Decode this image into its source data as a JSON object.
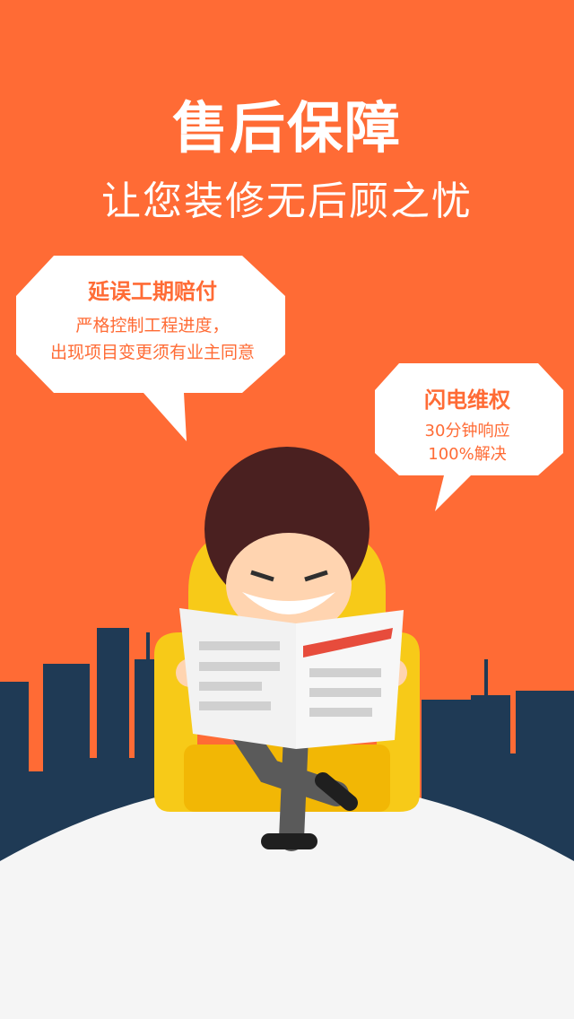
{
  "headline": "售后保障",
  "subline": "让您装修无后顾之忧",
  "bubble_left": {
    "title": "延误工期赔付",
    "lines": [
      "严格控制工程进度，",
      "出现项目变更须有业主同意"
    ]
  },
  "bubble_right": {
    "title": "闪电维权",
    "lines": [
      "30分钟响应",
      "100%解决"
    ]
  },
  "colors": {
    "background": "#ff6b35",
    "text": "#ffffff",
    "accent": "#ff6b35",
    "bubble": "#ffffff",
    "city": "#1f3a55",
    "ground": "#f5f5f5"
  }
}
